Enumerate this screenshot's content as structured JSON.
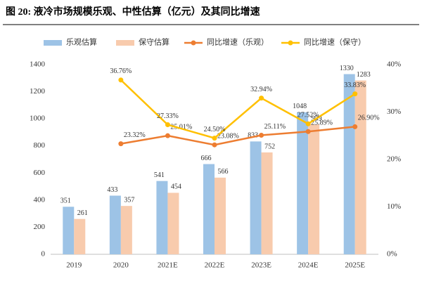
{
  "chart_data": {
    "type": "bar-line",
    "title": "图 20: 液冷市场规模乐观、中性估算（亿元）及其同比增速",
    "categories": [
      "2019",
      "2020",
      "2021E",
      "2022E",
      "2023E",
      "2024E",
      "2025E"
    ],
    "series": [
      {
        "name": "乐观估算",
        "type": "bar",
        "color": "#9dc3e6",
        "values": [
          351,
          433,
          541,
          666,
          833,
          1048,
          1330
        ]
      },
      {
        "name": "保守估算",
        "type": "bar",
        "color": "#f8cbad",
        "values": [
          261,
          357,
          454,
          566,
          752,
          959,
          1283
        ]
      },
      {
        "name": "同比增速（乐观）",
        "type": "line",
        "axis": "y2",
        "color": "#ed7d31",
        "values": [
          null,
          23.32,
          25.01,
          23.08,
          25.11,
          25.89,
          26.9
        ],
        "value_labels": [
          null,
          "23.32%",
          "25.01%",
          "23.08%",
          "25.11%",
          "25.89%",
          "26.90%"
        ]
      },
      {
        "name": "同比增速（保守）",
        "type": "line",
        "axis": "y2",
        "color": "#ffc000",
        "values": [
          null,
          36.76,
          27.33,
          24.5,
          32.94,
          27.52,
          33.83
        ],
        "value_labels": [
          null,
          "36.76%",
          "27.33%",
          "24.50%",
          "32.94%",
          "27.52%",
          "33.83%"
        ]
      }
    ],
    "ylim": [
      0,
      1400
    ],
    "yticks": [
      0,
      200,
      400,
      600,
      800,
      1000,
      1200,
      1400
    ],
    "y2lim": [
      0,
      40
    ],
    "y2ticks": [
      {
        "value": 0,
        "label": "0%"
      },
      {
        "value": 10,
        "label": "10%"
      },
      {
        "value": 20,
        "label": "20%"
      },
      {
        "value": 30,
        "label": "30%"
      },
      {
        "value": 40,
        "label": "40%"
      }
    ],
    "grid": false,
    "legend": "top"
  }
}
